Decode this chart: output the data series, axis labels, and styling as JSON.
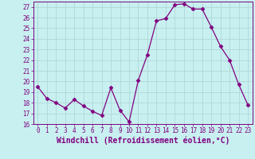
{
  "x": [
    0,
    1,
    2,
    3,
    4,
    5,
    6,
    7,
    8,
    9,
    10,
    11,
    12,
    13,
    14,
    15,
    16,
    17,
    18,
    19,
    20,
    21,
    22,
    23
  ],
  "y": [
    19.5,
    18.4,
    18.0,
    17.5,
    18.3,
    17.7,
    17.2,
    16.8,
    19.4,
    17.3,
    16.2,
    20.1,
    22.5,
    25.7,
    25.9,
    27.2,
    27.3,
    26.8,
    26.8,
    25.1,
    23.3,
    22.0,
    19.7,
    17.8
  ],
  "line_color": "#800080",
  "marker": "D",
  "marker_size": 2.5,
  "bg_color": "#c8f0f0",
  "grid_color": "#b0d8d8",
  "xlabel": "Windchill (Refroidissement éolien,°C)",
  "ylabel": "",
  "xlim": [
    -0.5,
    23.5
  ],
  "ylim": [
    16,
    27.5
  ],
  "yticks": [
    16,
    17,
    18,
    19,
    20,
    21,
    22,
    23,
    24,
    25,
    26,
    27
  ],
  "xticks": [
    0,
    1,
    2,
    3,
    4,
    5,
    6,
    7,
    8,
    9,
    10,
    11,
    12,
    13,
    14,
    15,
    16,
    17,
    18,
    19,
    20,
    21,
    22,
    23
  ],
  "tick_color": "#800080",
  "tick_fontsize": 5.5,
  "xlabel_fontsize": 7.0,
  "label_color": "#800080"
}
